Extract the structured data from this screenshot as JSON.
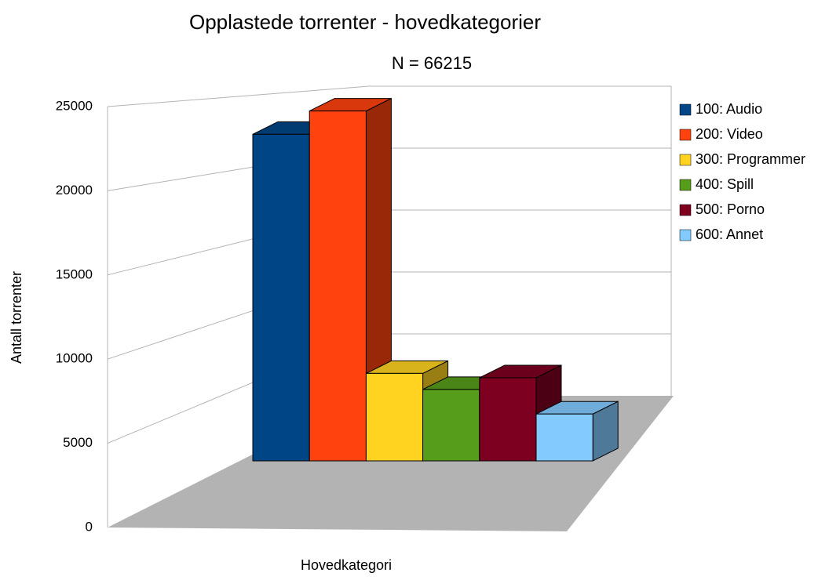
{
  "chart_data": {
    "type": "bar3d",
    "title": "Opplastede torrenter - hovedkategorier",
    "subtitle": "N = 66215",
    "x_label": "Hovedkategori",
    "y_label": "Antall torrenter",
    "series": [
      {
        "name": "100: Audio",
        "color": "#004586",
        "values": [
          22400
        ]
      },
      {
        "name": "200: Video",
        "color": "#ff420e",
        "values": [
          24000
        ]
      },
      {
        "name": "300: Programmer",
        "color": "#ffd320",
        "values": [
          6000
        ]
      },
      {
        "name": "400: Spill",
        "color": "#579d1c",
        "values": [
          4900
        ]
      },
      {
        "name": "500: Porno",
        "color": "#7e0021",
        "values": [
          5700
        ]
      },
      {
        "name": "600: Annet",
        "color": "#83caff",
        "values": [
          3215
        ]
      }
    ],
    "ylim": [
      0,
      25000
    ],
    "yticks": [
      0,
      5000,
      10000,
      15000,
      20000,
      25000
    ],
    "grid": true,
    "legend": "right"
  }
}
